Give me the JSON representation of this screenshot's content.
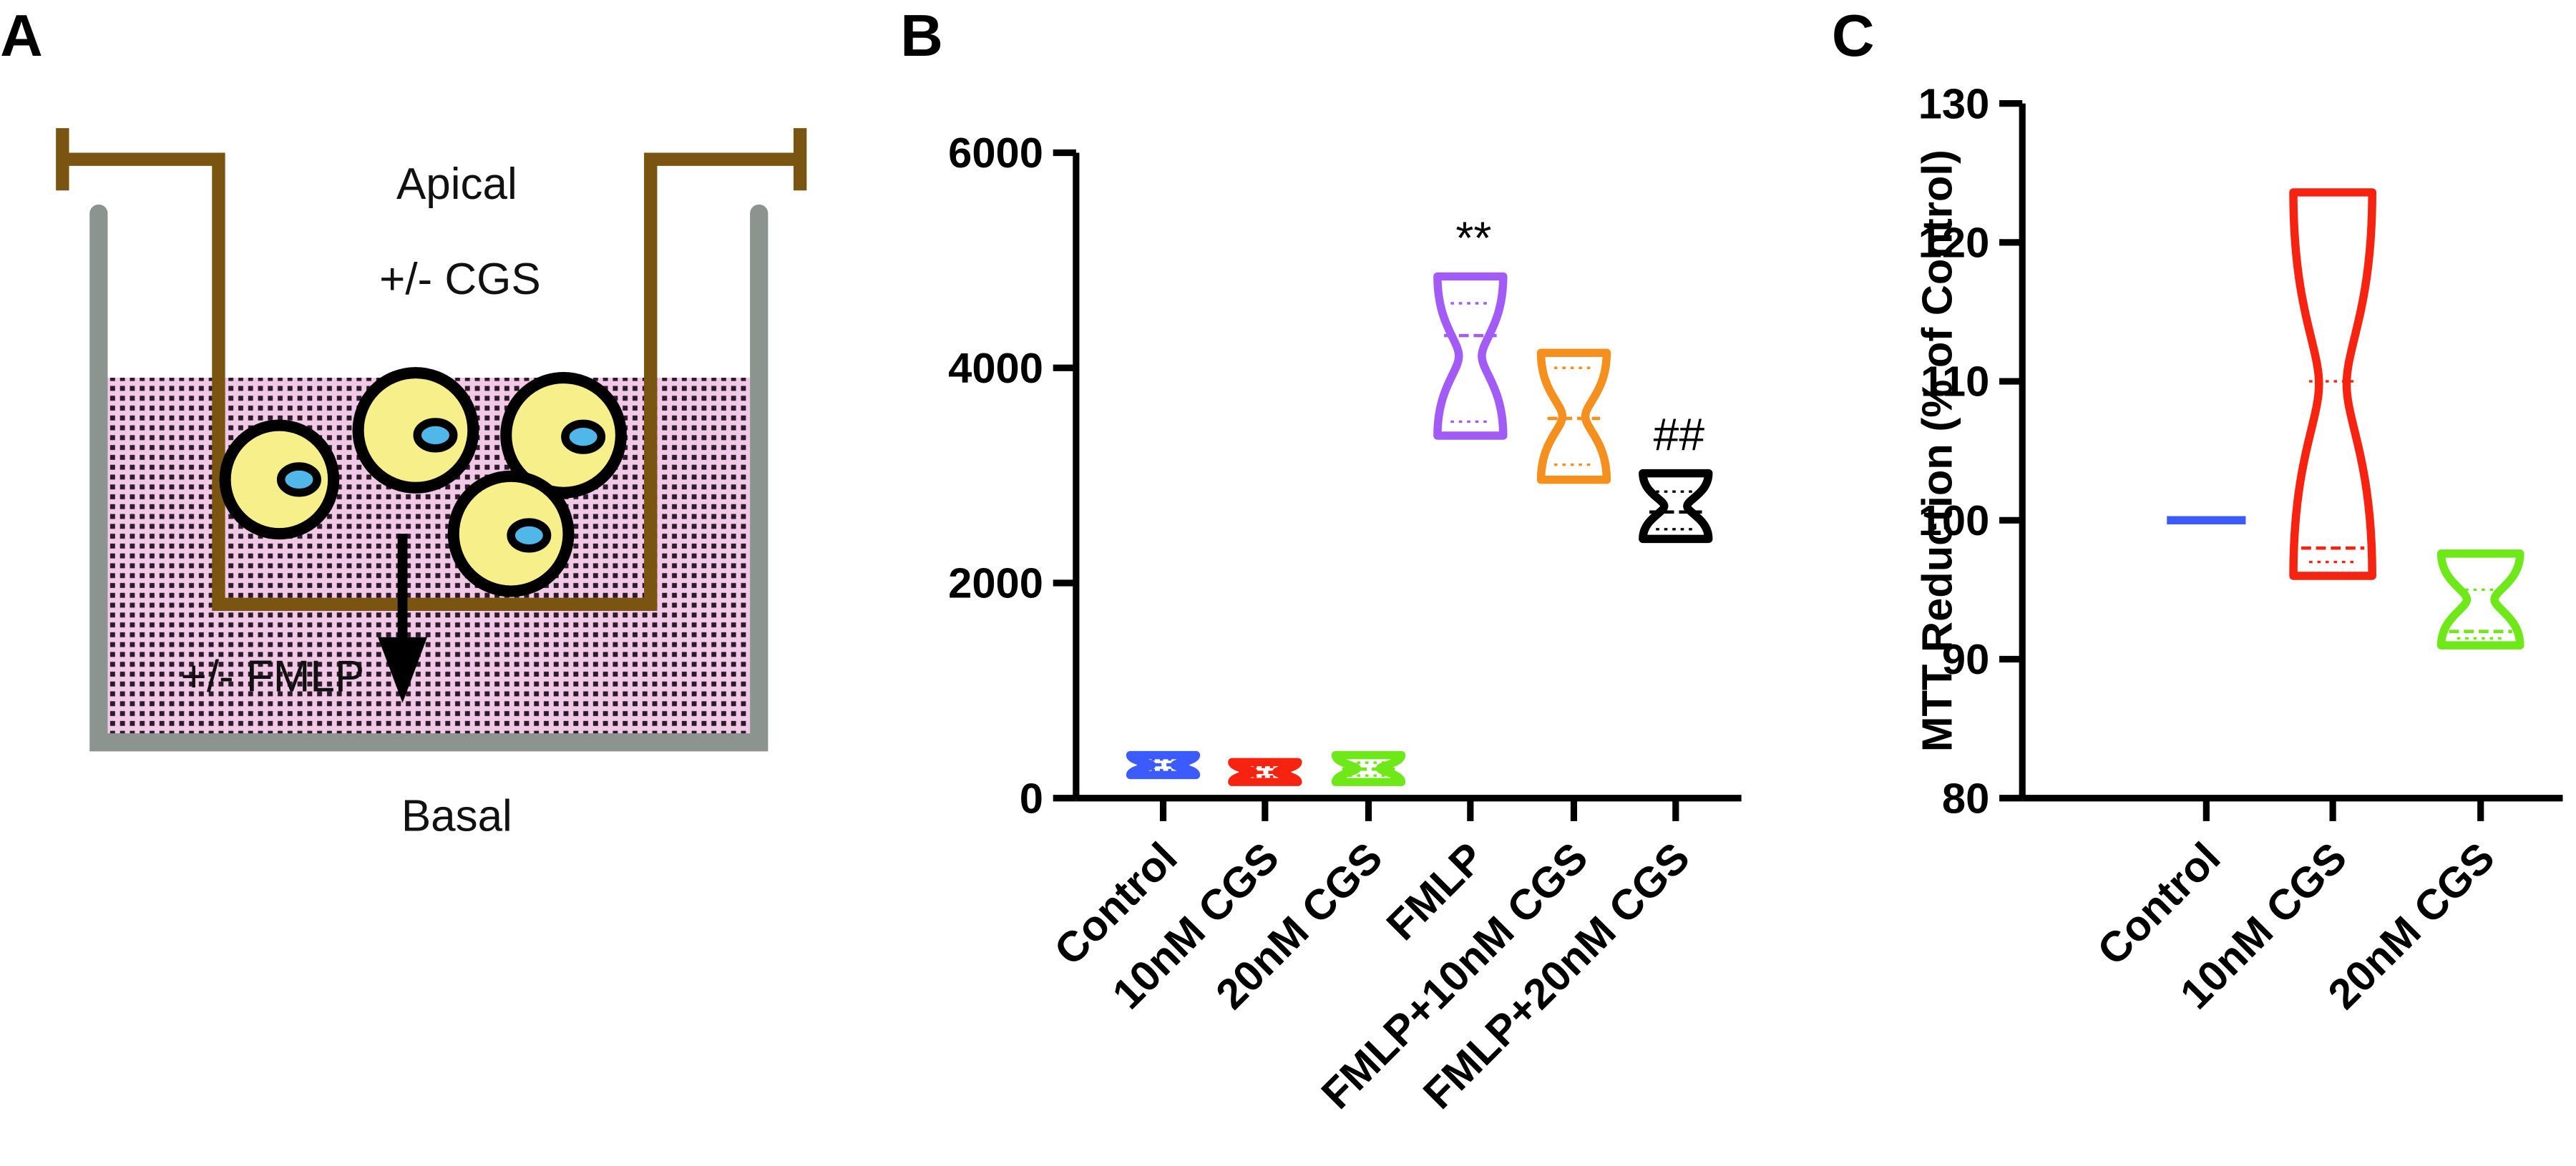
{
  "diagram": {
    "panel_label": "A",
    "apical": "Apical",
    "treatment_top": "+/- CGS",
    "treatment_bottom": "+/- FMLP",
    "basal": "Basal"
  },
  "chart_data": [
    {
      "type": "violin",
      "panel_label": "B",
      "categories": [
        "Control",
        "10nM CGS",
        "20nM CGS",
        "FMLP",
        "FMLP+10nM CGS",
        "FMLP+20nM CGS"
      ],
      "colors": [
        "#3b5bfd",
        "#f5230f",
        "#6fe81a",
        "#a25cf5",
        "#f5901e",
        "#000000"
      ],
      "min": [
        215,
        150,
        150,
        3370,
        2960,
        2410
      ],
      "q1": [
        260,
        200,
        210,
        3500,
        3100,
        2500
      ],
      "median": [
        310,
        240,
        270,
        4300,
        3530,
        2660
      ],
      "q3": [
        360,
        290,
        330,
        4600,
        4000,
        2850
      ],
      "max": [
        400,
        335,
        400,
        4850,
        4140,
        3020
      ],
      "annotations": [
        null,
        null,
        null,
        "**",
        null,
        "##"
      ],
      "ylim": [
        0,
        6000
      ],
      "yticks": [
        0,
        2000,
        4000,
        6000
      ]
    },
    {
      "type": "violin",
      "panel_label": "C",
      "y_label": "MTT Reduction (% of Control)",
      "categories": [
        "Control",
        "10nM CGS",
        "20nM CGS"
      ],
      "colors": [
        "#3b5bfd",
        "#f5230f",
        "#6fe81a"
      ],
      "min": [
        100,
        96,
        91
      ],
      "q1": [
        100,
        97,
        91.5
      ],
      "median": [
        100,
        98,
        92
      ],
      "q3": [
        100,
        110,
        95
      ],
      "max": [
        100,
        123.6,
        97.6
      ],
      "ylim": [
        80,
        130
      ],
      "yticks": [
        80,
        90,
        100,
        110,
        120,
        130
      ]
    }
  ]
}
